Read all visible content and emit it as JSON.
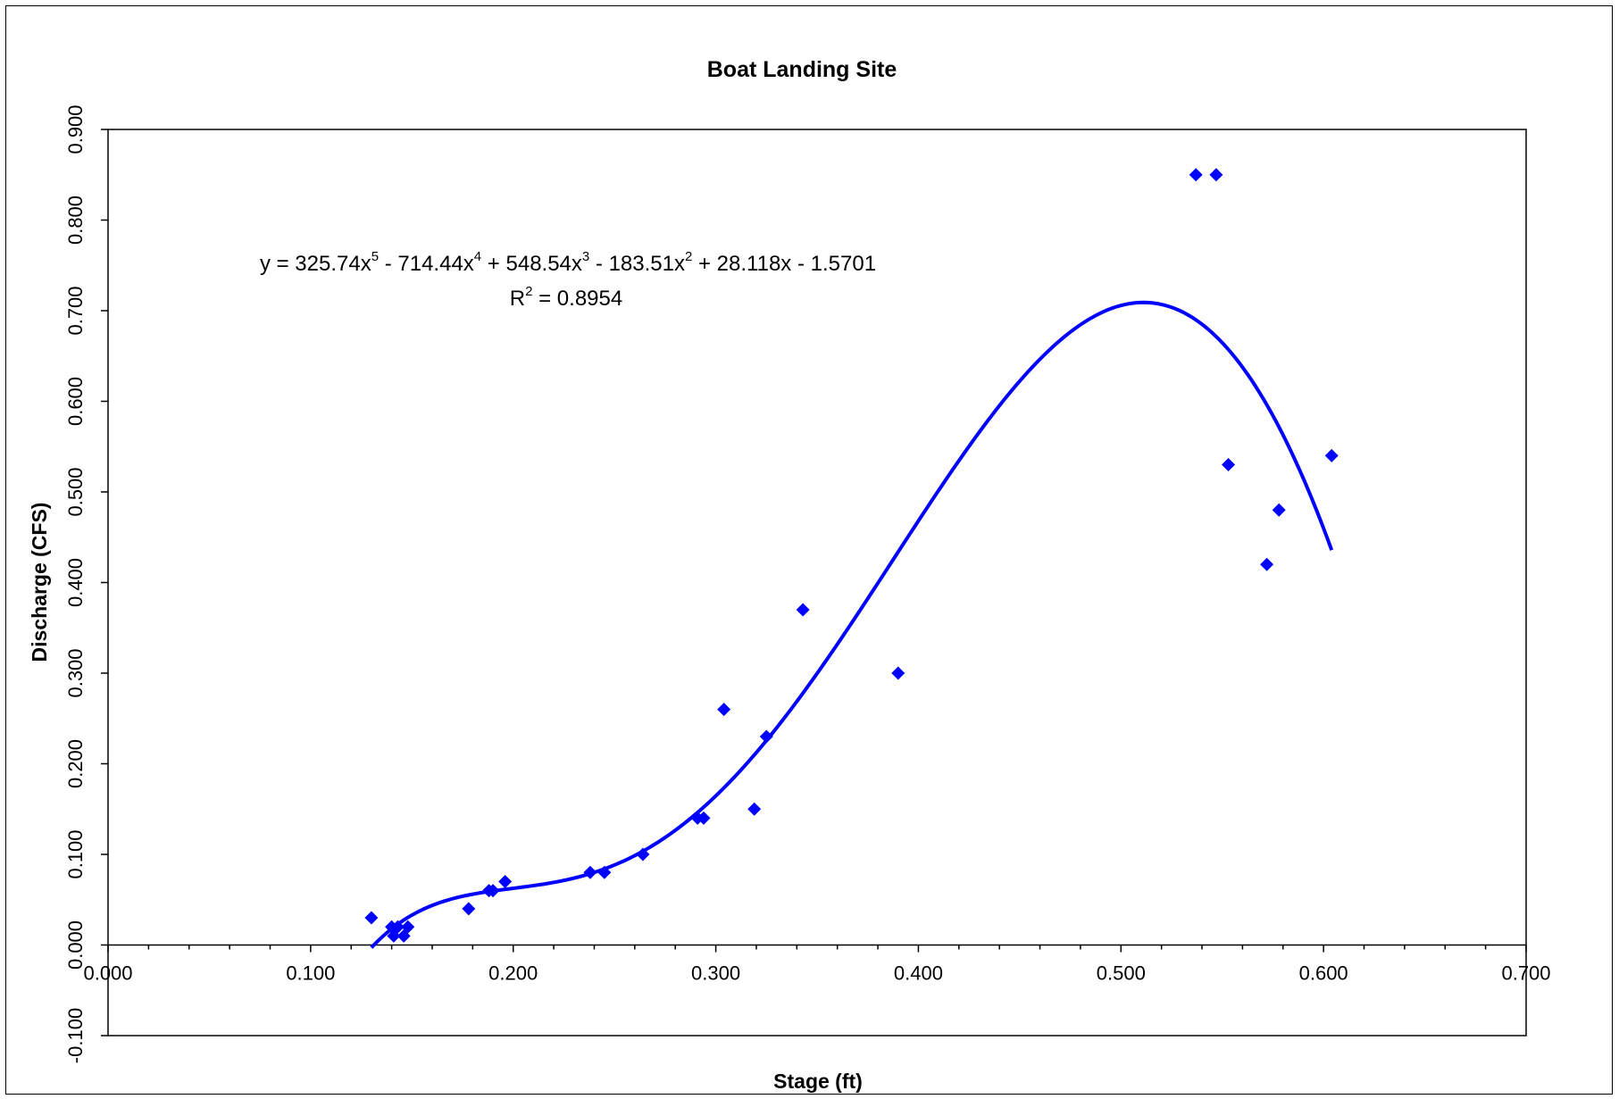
{
  "chart_data": {
    "type": "scatter",
    "title": "Boat Landing Site",
    "xlabel": "Stage (ft)",
    "ylabel": "Discharge (CFS)",
    "xlim": [
      0.0,
      0.7
    ],
    "ylim": [
      -0.1,
      0.9
    ],
    "x_ticks": [
      "0.000",
      "0.100",
      "0.200",
      "0.300",
      "0.400",
      "0.500",
      "0.600",
      "0.700"
    ],
    "y_ticks": [
      "-0.100",
      "0.000",
      "0.100",
      "0.200",
      "0.300",
      "0.400",
      "0.500",
      "0.600",
      "0.700",
      "0.800",
      "0.900"
    ],
    "grid": false,
    "legend": "none",
    "marker": "diamond",
    "color": "#0000ff",
    "points": [
      {
        "x": 0.13,
        "y": 0.03
      },
      {
        "x": 0.14,
        "y": 0.02
      },
      {
        "x": 0.141,
        "y": 0.01
      },
      {
        "x": 0.143,
        "y": 0.02
      },
      {
        "x": 0.146,
        "y": 0.01
      },
      {
        "x": 0.148,
        "y": 0.02
      },
      {
        "x": 0.178,
        "y": 0.04
      },
      {
        "x": 0.188,
        "y": 0.06
      },
      {
        "x": 0.19,
        "y": 0.06
      },
      {
        "x": 0.196,
        "y": 0.07
      },
      {
        "x": 0.238,
        "y": 0.08
      },
      {
        "x": 0.245,
        "y": 0.08
      },
      {
        "x": 0.264,
        "y": 0.1
      },
      {
        "x": 0.291,
        "y": 0.14
      },
      {
        "x": 0.294,
        "y": 0.14
      },
      {
        "x": 0.304,
        "y": 0.26
      },
      {
        "x": 0.319,
        "y": 0.15
      },
      {
        "x": 0.325,
        "y": 0.23
      },
      {
        "x": 0.343,
        "y": 0.37
      },
      {
        "x": 0.39,
        "y": 0.3
      },
      {
        "x": 0.537,
        "y": 0.85
      },
      {
        "x": 0.547,
        "y": 0.85
      },
      {
        "x": 0.553,
        "y": 0.53
      },
      {
        "x": 0.572,
        "y": 0.42
      },
      {
        "x": 0.578,
        "y": 0.48
      },
      {
        "x": 0.604,
        "y": 0.54
      }
    ],
    "trendline": {
      "type": "polynomial",
      "order": 5,
      "coefficients": [
        325.74,
        -714.44,
        548.54,
        -183.51,
        28.118,
        -1.5701
      ],
      "x_range": [
        0.13,
        0.604
      ],
      "equation": {
        "prefix": "y = 325.74x",
        "p1": "5",
        "m1": " - 714.44x",
        "p2": "4",
        "m2": " + 548.54x",
        "p3": "3",
        "m3": " - 183.51x",
        "p4": "2",
        "m4": " + 28.118x - 1.5701"
      },
      "r2": {
        "prefix": "R",
        "sup": "2",
        "suffix": " = 0.8954"
      }
    }
  }
}
